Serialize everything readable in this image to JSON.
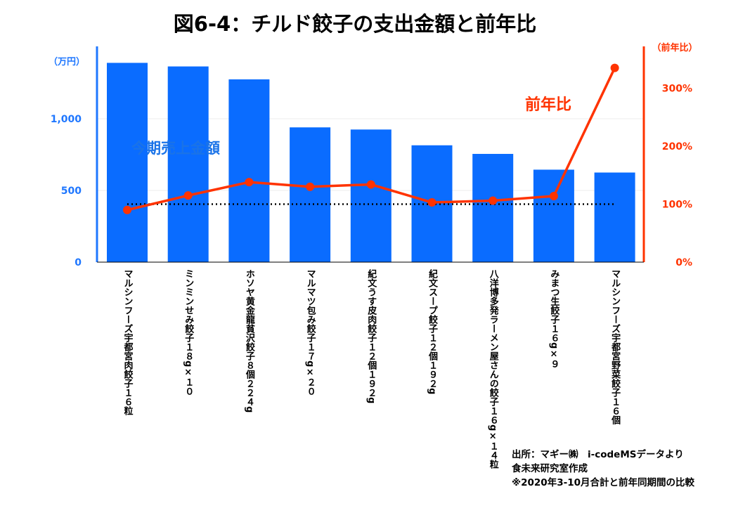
{
  "chart_data": {
    "type": "bar",
    "title": "図6-4：チルド餃子の支出金額と前年比",
    "categories": [
      "マルシンフーズ宇都宮肉餃子１６粒",
      "ミンミンせみ餃子１８g×１０",
      "ホソヤ黄金龍貧沢餃子８個２２４g",
      "マルマツ包み餃子１７g×２０",
      "紀文うす皮肉餃子１２個１９２g",
      "紀文スープ餃子１２個１９２g",
      "八洋博多発ラーメン屋さんの餃子１６g×１４粒",
      "みまつ生餃子１６g×９",
      "マルシンフーズ宇都宮野菜餃子１６個"
    ],
    "series": [
      {
        "name": "今期売上金額",
        "type": "bar",
        "axis": "left",
        "color": "#0a6cff",
        "values": [
          1390,
          1365,
          1275,
          940,
          925,
          815,
          755,
          645,
          625
        ]
      },
      {
        "name": "前年比",
        "type": "line",
        "axis": "right",
        "color": "#ff3300",
        "values": [
          90,
          115,
          138,
          130,
          134,
          103,
          106,
          114,
          335
        ]
      }
    ],
    "reference_line": {
      "axis": "right",
      "value": 100,
      "style": "dotted",
      "color": "#000000"
    },
    "y_left": {
      "unit": "（万円）",
      "ylim": [
        0,
        1500
      ],
      "ticks": [
        0,
        500,
        1000
      ],
      "tick_labels": [
        "0",
        "500",
        "1,000"
      ],
      "color": "#1f77ff"
    },
    "y_right": {
      "unit": "（前年比）",
      "ylim": [
        0,
        350
      ],
      "ticks": [
        0,
        100,
        200,
        300
      ],
      "tick_labels": [
        "0%",
        "100%",
        "200%",
        "300%"
      ],
      "color": "#ff3300"
    },
    "grid": true,
    "xlabel": "",
    "ylabel": ""
  },
  "source_note": [
    "出所：マギー㈱　i-codeMSデータより",
    "食未来研究室作成",
    "※2020年3-10月合計と前年同期間の比較"
  ]
}
